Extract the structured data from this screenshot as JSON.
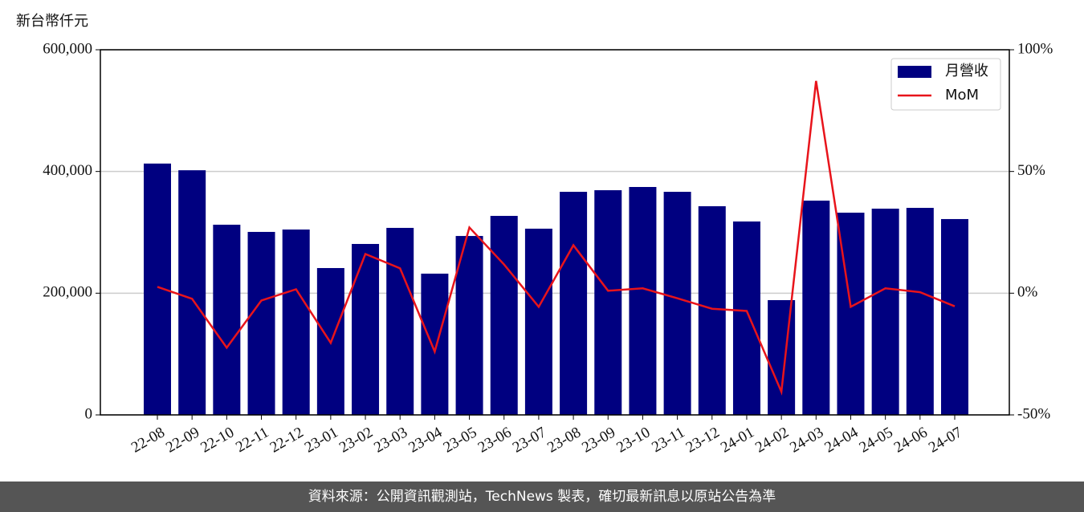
{
  "chart_data": {
    "type": "bar-line",
    "y_label": "新台幣仟元",
    "categories": [
      "22-08",
      "22-09",
      "22-10",
      "22-11",
      "22-12",
      "23-01",
      "23-02",
      "23-03",
      "23-04",
      "23-05",
      "23-06",
      "23-07",
      "23-08",
      "23-09",
      "23-10",
      "23-11",
      "23-12",
      "24-01",
      "24-02",
      "24-03",
      "24-04",
      "24-05",
      "24-06",
      "24-07"
    ],
    "series": [
      {
        "name": "月營收",
        "type": "bar",
        "color": "#000080",
        "values": [
          413000,
          402000,
          312500,
          300700,
          304600,
          241300,
          280900,
          307300,
          232100,
          294000,
          327000,
          306000,
          366600,
          369200,
          374500,
          366600,
          342900,
          317800,
          188600,
          352100,
          332300,
          338900,
          340200,
          321800
        ]
      },
      {
        "name": "MoM",
        "type": "line",
        "axis": "y2",
        "color": "#e8141b",
        "values": [
          2.6,
          -2.3,
          -22.4,
          -3.0,
          1.6,
          -20.4,
          16.1,
          10.2,
          -24.0,
          27.0,
          11.8,
          -5.6,
          19.7,
          1.0,
          2.0,
          -2.1,
          -6.4,
          -7.3,
          -40.5,
          87.2,
          -5.6,
          2.0,
          0.4,
          -5.4
        ]
      }
    ],
    "ylim": [
      0,
      600000
    ],
    "yticks": [
      0,
      {
        "value": 200000,
        "label": "200,000"
      },
      {
        "value": 400000,
        "label": "400,000"
      },
      {
        "value": 600000,
        "label": "600,000"
      }
    ],
    "y2lim": [
      -50,
      100
    ],
    "y2ticks": [
      {
        "value": -50,
        "label": "-50%"
      },
      {
        "value": 0,
        "label": "0%"
      },
      {
        "value": 50,
        "label": "50%"
      },
      {
        "value": 100,
        "label": "100%"
      }
    ],
    "grid": true,
    "legend": "upper right",
    "footer": "資料來源：公開資訊觀測站，TechNews 製表，確切最新訊息以原站公告為準"
  }
}
